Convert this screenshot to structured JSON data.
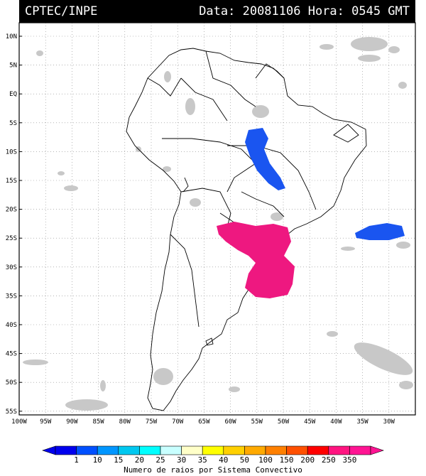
{
  "header": {
    "agency": "CPTEC/INPE",
    "datetime": "Data: 20081106 Hora: 0545 GMT"
  },
  "map": {
    "lat_labels": [
      "10N",
      "5N",
      "EQ",
      "5S",
      "10S",
      "15S",
      "20S",
      "25S",
      "30S",
      "35S",
      "40S",
      "45S",
      "50S",
      "55S"
    ],
    "lon_labels": [
      "100W",
      "95W",
      "90W",
      "85W",
      "80W",
      "75W",
      "70W",
      "65W",
      "60W",
      "55W",
      "50W",
      "45W",
      "40W",
      "35W",
      "30W"
    ],
    "frame_color": "#000000",
    "grid": "dotted"
  },
  "colorbar": {
    "ticks": [
      "1",
      "10",
      "15",
      "20",
      "25",
      "30",
      "35",
      "40",
      "50",
      "100",
      "150",
      "200",
      "250",
      "350"
    ],
    "colors": [
      "#0000ee",
      "#0050ff",
      "#0096ff",
      "#00c8f0",
      "#00ffff",
      "#c8ffff",
      "#ffffc8",
      "#ffff00",
      "#ffd000",
      "#ffaa00",
      "#ff8000",
      "#ff5000",
      "#ff0000",
      "#ff1480",
      "#ff1493"
    ],
    "caption": "Numero de raios por Sistema Convectivo"
  }
}
